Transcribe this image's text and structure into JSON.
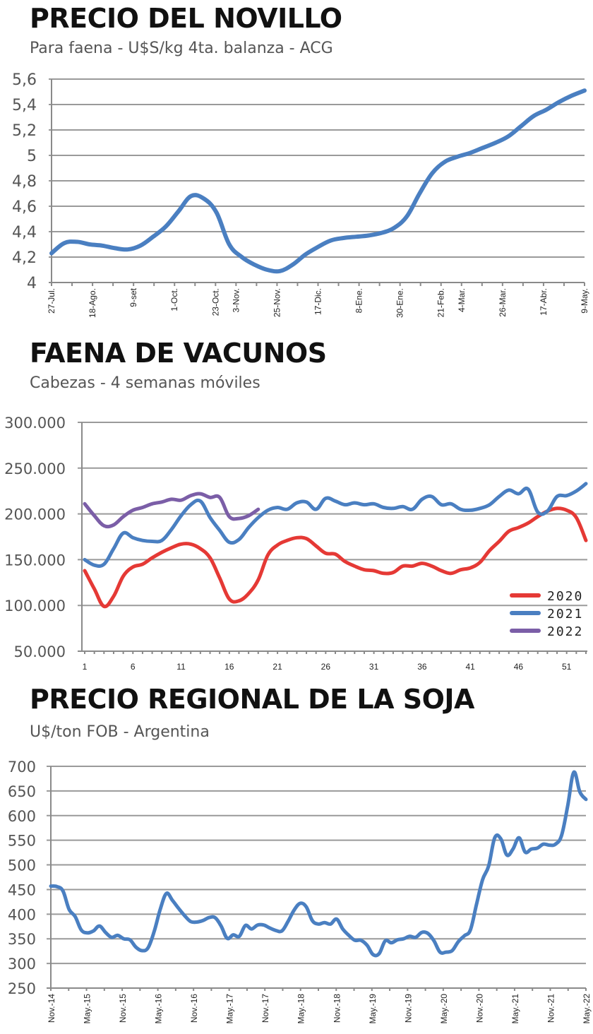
{
  "chart_data": [
    {
      "type": "line",
      "title": "PRECIO DEL NOVILLO",
      "subtitle": "Para faena - U$S/kg 4ta. balanza - ACG",
      "xlabel": "",
      "ylabel": "",
      "ylim": [
        4,
        5.6
      ],
      "yticks": [
        "5,6",
        "5,4",
        "5,2",
        "5",
        "4,8",
        "4,6",
        "4,4",
        "4,2",
        "4"
      ],
      "ytick_values": [
        5.6,
        5.4,
        5.2,
        5,
        4.8,
        4.6,
        4.4,
        4.2,
        4
      ],
      "grid": true,
      "tick_count": 27,
      "xtick_labels": [
        {
          "label": "27-Jul.",
          "index": 0
        },
        {
          "label": "18-Ago.",
          "index": 2
        },
        {
          "label": "9-set",
          "index": 4
        },
        {
          "label": "1-Oct.",
          "index": 6
        },
        {
          "label": "23-Oct.",
          "index": 8
        },
        {
          "label": "3-Nov.",
          "index": 9
        },
        {
          "label": "25-Nov.",
          "index": 11
        },
        {
          "label": "17-Dic.",
          "index": 13
        },
        {
          "label": "8-Ene.",
          "index": 15
        },
        {
          "label": "30-Ene.",
          "index": 17
        },
        {
          "label": "21-Feb.",
          "index": 19
        },
        {
          "label": "4-Mar.",
          "index": 20
        },
        {
          "label": "26-Mar.",
          "index": 22
        },
        {
          "label": "17-Abr.",
          "index": 24
        },
        {
          "label": "9-May.",
          "index": 26
        }
      ],
      "series": [
        {
          "name": "Novillo",
          "color": "#4a7fc1",
          "values": [
            4.23,
            4.31,
            4.32,
            4.3,
            4.29,
            4.27,
            4.26,
            4.29,
            4.36,
            4.44,
            4.56,
            4.68,
            4.66,
            4.55,
            4.3,
            4.2,
            4.14,
            4.1,
            4.09,
            4.14,
            4.22,
            4.28,
            4.33,
            4.35,
            4.36,
            4.37,
            4.39,
            4.43,
            4.52,
            4.7,
            4.86,
            4.95,
            4.99,
            5.02,
            5.06,
            5.1,
            5.15,
            5.23,
            5.31,
            5.36,
            5.42,
            5.47,
            5.51
          ]
        }
      ]
    },
    {
      "type": "line",
      "title": "FAENA DE VACUNOS",
      "subtitle": "Cabezas - 4 semanas móviles",
      "xlabel": "",
      "ylabel": "",
      "ylim": [
        50000,
        300000
      ],
      "xlim": [
        1,
        53
      ],
      "yticks": [
        "300.000",
        "250.000",
        "200.000",
        "150.000",
        "100.000",
        "50.000"
      ],
      "ytick_values": [
        300000,
        250000,
        200000,
        150000,
        100000,
        50000
      ],
      "xticks": [
        "1",
        "6",
        "11",
        "16",
        "21",
        "26",
        "31",
        "36",
        "41",
        "46",
        "51"
      ],
      "xtick_values": [
        1,
        6,
        11,
        16,
        21,
        26,
        31,
        36,
        41,
        46,
        51
      ],
      "grid": true,
      "legend_position": "bottom-right",
      "series": [
        {
          "name": "2020",
          "color": "#e53935",
          "values": [
            138000,
            118000,
            99000,
            110000,
            132000,
            142000,
            145000,
            152000,
            158000,
            163000,
            167000,
            167000,
            162000,
            152000,
            130000,
            107000,
            105000,
            113000,
            128000,
            155000,
            166000,
            171000,
            174000,
            173000,
            165000,
            157000,
            156000,
            148000,
            143000,
            139000,
            138000,
            135000,
            136000,
            143000,
            143000,
            146000,
            143000,
            138000,
            135000,
            139000,
            141000,
            147000,
            160000,
            170000,
            181000,
            185000,
            190000,
            197000,
            203000,
            206000,
            204000,
            196000,
            171000
          ]
        },
        {
          "name": "2021",
          "color": "#4a7fc1",
          "values": [
            150000,
            144000,
            145000,
            162000,
            179000,
            174000,
            171000,
            170000,
            171000,
            183000,
            198000,
            210000,
            214000,
            196000,
            182000,
            169000,
            172000,
            185000,
            196000,
            204000,
            207000,
            205000,
            212000,
            213000,
            205000,
            217000,
            214000,
            210000,
            212000,
            210000,
            211000,
            207000,
            206000,
            208000,
            205000,
            216000,
            219000,
            210000,
            211000,
            205000,
            204000,
            206000,
            210000,
            219000,
            226000,
            222000,
            227000,
            202000,
            203000,
            219000,
            220000,
            225000,
            233000
          ]
        },
        {
          "name": "2022",
          "color": "#7b5ea7",
          "values": [
            211000,
            198000,
            187000,
            188000,
            197000,
            204000,
            207000,
            211000,
            213000,
            216000,
            215000,
            220000,
            222000,
            218000,
            218000,
            197000,
            195000,
            198000,
            205000
          ]
        }
      ]
    },
    {
      "type": "line",
      "title": "PRECIO REGIONAL DE LA SOJA",
      "subtitle": "U$/ton FOB - Argentina",
      "xlabel": "",
      "ylabel": "",
      "ylim": [
        250,
        700
      ],
      "yticks": [
        "700",
        "650",
        "600",
        "550",
        "500",
        "450",
        "400",
        "350",
        "300",
        "250"
      ],
      "ytick_values": [
        700,
        650,
        600,
        550,
        500,
        450,
        400,
        350,
        300,
        250
      ],
      "xticks": [
        "Nov.-14",
        "May.-15",
        "Nov.-15",
        "May.-16",
        "Nov.-16",
        "May.-17",
        "Nov.-17",
        "May.-18",
        "Nov.-18",
        "May.-19",
        "Nov.-19",
        "May.-20",
        "Nov.-20",
        "May.-21",
        "Nov.-21",
        "May.-22"
      ],
      "grid": true,
      "series": [
        {
          "name": "Soja",
          "color": "#4a7fc1",
          "values": [
            457,
            456,
            447,
            410,
            395,
            368,
            362,
            366,
            376,
            363,
            353,
            357,
            350,
            348,
            333,
            326,
            332,
            365,
            410,
            442,
            428,
            412,
            397,
            385,
            384,
            387,
            393,
            393,
            376,
            351,
            358,
            355,
            377,
            370,
            378,
            378,
            372,
            367,
            366,
            385,
            408,
            422,
            415,
            387,
            380,
            383,
            380,
            390,
            370,
            357,
            347,
            347,
            337,
            318,
            320,
            346,
            342,
            348,
            350,
            355,
            353,
            363,
            361,
            346,
            323,
            323,
            326,
            344,
            356,
            368,
            420,
            470,
            498,
            555,
            553,
            520,
            532,
            555,
            526,
            532,
            534,
            542,
            540,
            542,
            560,
            620,
            688,
            648,
            633
          ]
        }
      ]
    }
  ]
}
